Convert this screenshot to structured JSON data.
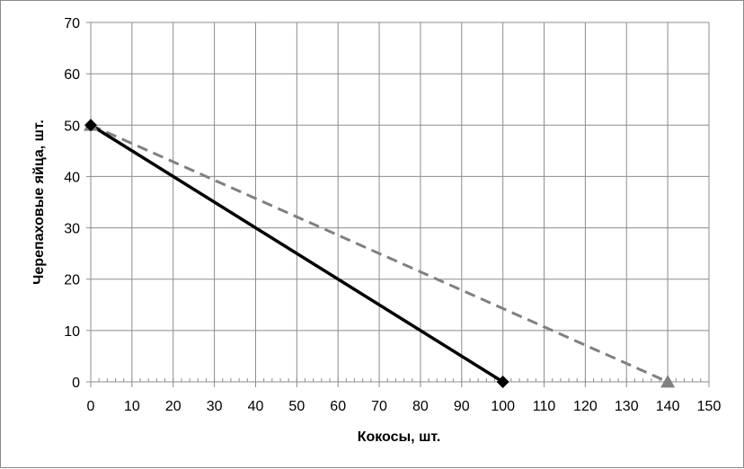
{
  "chart_data": {
    "type": "line",
    "title": "",
    "xlabel": "Кокосы, шт.",
    "ylabel": "Черепаховые яйца, шт.",
    "xlim": [
      0,
      150
    ],
    "ylim": [
      0,
      70
    ],
    "x_ticks": [
      "0",
      "10",
      "20",
      "30",
      "40",
      "50",
      "60",
      "70",
      "80",
      "90",
      "100",
      "110",
      "120",
      "130",
      "140",
      "150"
    ],
    "y_ticks": [
      "0",
      "10",
      "20",
      "30",
      "40",
      "50",
      "60",
      "70"
    ],
    "grid": true,
    "legend": "none",
    "series": [
      {
        "x": [
          0,
          100
        ],
        "y": [
          50,
          0
        ],
        "color": "#000000",
        "line_style": "solid",
        "marker": "diamond",
        "marker_color": "#000000"
      },
      {
        "x": [
          0,
          140
        ],
        "y": [
          50,
          0
        ],
        "color": "#808080",
        "line_style": "dashed",
        "marker": "triangle",
        "marker_color": "#808080"
      }
    ]
  }
}
